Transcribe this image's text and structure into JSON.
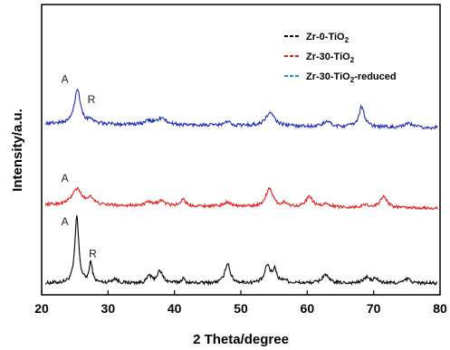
{
  "chart_data": {
    "type": "line",
    "xlabel": "2 Theta/degree",
    "ylabel": "Intensity/a.u.",
    "xlim": [
      20,
      80
    ],
    "x_ticks": [
      20,
      30,
      40,
      50,
      60,
      70,
      80
    ],
    "ylim": [
      0,
      100
    ],
    "grid": false,
    "legend_position": "top-right",
    "legend": [
      {
        "text": "Zr-0-TiO",
        "sub": "2",
        "tail": "",
        "color": "#000000"
      },
      {
        "text": "Zr-30-TiO",
        "sub": "2",
        "tail": "",
        "color": "#e0201b"
      },
      {
        "text": "Zr-30-TiO",
        "sub": "2",
        "tail": "-reduced",
        "color": "#1e8fe0"
      }
    ],
    "series": [
      {
        "color": "#000000",
        "baseline": 4,
        "noise": 0.6,
        "drift": 0,
        "peaks": [
          {
            "x": 25.3,
            "h": 23,
            "w": 0.35
          },
          {
            "x": 27.4,
            "h": 7,
            "w": 0.28
          },
          {
            "x": 31.0,
            "h": 1.5,
            "w": 0.5
          },
          {
            "x": 36.2,
            "h": 2.5,
            "w": 0.35
          },
          {
            "x": 37.8,
            "h": 4,
            "w": 0.55
          },
          {
            "x": 41.3,
            "h": 1.5,
            "w": 0.3
          },
          {
            "x": 48.0,
            "h": 7,
            "w": 0.45
          },
          {
            "x": 54.0,
            "h": 6,
            "w": 0.45
          },
          {
            "x": 55.1,
            "h": 4.5,
            "w": 0.4
          },
          {
            "x": 56.6,
            "h": 1.2,
            "w": 0.35
          },
          {
            "x": 62.7,
            "h": 3,
            "w": 0.55
          },
          {
            "x": 68.9,
            "h": 2,
            "w": 0.5
          },
          {
            "x": 70.3,
            "h": 1.5,
            "w": 0.45
          },
          {
            "x": 75.1,
            "h": 1.5,
            "w": 0.5
          }
        ]
      },
      {
        "color": "#e0201b",
        "baseline": 31,
        "noise": 0.5,
        "drift": -1.2,
        "peaks": [
          {
            "x": 25.3,
            "h": 5.5,
            "w": 0.9
          },
          {
            "x": 27.4,
            "h": 2.5,
            "w": 0.5
          },
          {
            "x": 36.1,
            "h": 1.2,
            "w": 0.5
          },
          {
            "x": 38.0,
            "h": 1.8,
            "w": 0.6
          },
          {
            "x": 41.3,
            "h": 2.5,
            "w": 0.4
          },
          {
            "x": 48.0,
            "h": 1.5,
            "w": 0.6
          },
          {
            "x": 54.3,
            "h": 6.5,
            "w": 0.6
          },
          {
            "x": 56.6,
            "h": 1.2,
            "w": 0.5
          },
          {
            "x": 60.3,
            "h": 3.5,
            "w": 0.6
          },
          {
            "x": 63.0,
            "h": 1.2,
            "w": 0.6
          },
          {
            "x": 68.8,
            "h": 1.0,
            "w": 0.5
          },
          {
            "x": 71.5,
            "h": 4,
            "w": 0.6
          }
        ]
      },
      {
        "color": "#1f2fb8",
        "baseline": 59,
        "noise": 0.6,
        "drift": -1.5,
        "peaks": [
          {
            "x": 25.4,
            "h": 12,
            "w": 0.55
          },
          {
            "x": 27.4,
            "h": 1.5,
            "w": 0.4
          },
          {
            "x": 36.1,
            "h": 1.2,
            "w": 0.5
          },
          {
            "x": 38.0,
            "h": 2.2,
            "w": 0.9
          },
          {
            "x": 48.0,
            "h": 1.2,
            "w": 0.6
          },
          {
            "x": 54.4,
            "h": 4.5,
            "w": 0.8
          },
          {
            "x": 63.0,
            "h": 1.8,
            "w": 0.6
          },
          {
            "x": 68.2,
            "h": 7,
            "w": 0.5
          },
          {
            "x": 75.3,
            "h": 1.5,
            "w": 0.6
          }
        ]
      }
    ],
    "annotations": [
      {
        "text": "A",
        "x": 23.5,
        "y": 73
      },
      {
        "text": "R",
        "x": 27.5,
        "y": 66
      },
      {
        "text": "A",
        "x": 23.5,
        "y": 39
      },
      {
        "text": "A",
        "x": 23.5,
        "y": 24
      },
      {
        "text": "R",
        "x": 27.7,
        "y": 13
      }
    ]
  }
}
